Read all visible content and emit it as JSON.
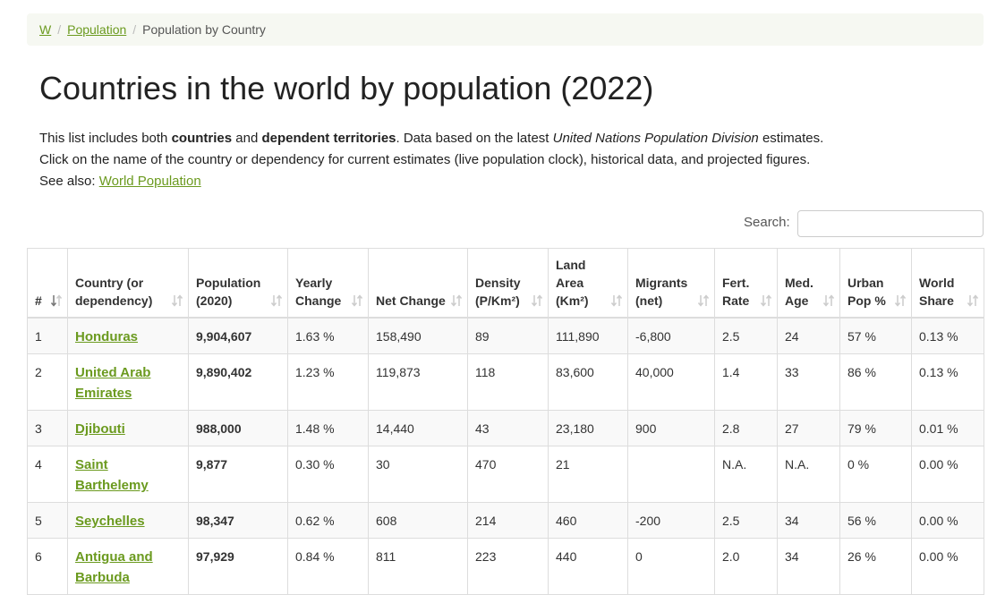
{
  "breadcrumb": [
    "W",
    "Population",
    "Population by Country"
  ],
  "title": "Countries in the world by population (2022)",
  "intro": {
    "line1": [
      "This list includes both",
      "countries",
      "and",
      "dependent territories",
      ". Data based on the latest",
      "United Nations Population Division",
      "estimates."
    ],
    "line2": "Click on the name of the country or dependency for current estimates (live population clock), historical data, and projected figures.",
    "line3": [
      "See also:",
      "World Population"
    ]
  },
  "search_label": "Search:",
  "table": {
    "headers": [
      "#",
      "Country (or dependency)",
      "Population (2020)",
      "Yearly Change",
      "Net Change",
      "Density (P/Km²)",
      "Land Area (Km²)",
      "Migrants (net)",
      "Fert. Rate",
      "Med. Age",
      "Urban Pop %",
      "World Share"
    ],
    "rows": [
      [
        "1",
        "Honduras",
        "9,904,607",
        "1.63 %",
        "158,490",
        "89",
        "111,890",
        "-6,800",
        "2.5",
        "24",
        "57 %",
        "0.13 %"
      ],
      [
        "2",
        "United Arab Emirates",
        "9,890,402",
        "1.23 %",
        "119,873",
        "118",
        "83,600",
        "40,000",
        "1.4",
        "33",
        "86 %",
        "0.13 %"
      ],
      [
        "3",
        "Djibouti",
        "988,000",
        "1.48 %",
        "14,440",
        "43",
        "23,180",
        "900",
        "2.8",
        "27",
        "79 %",
        "0.01 %"
      ],
      [
        "4",
        "Saint Barthelemy",
        "9,877",
        "0.30 %",
        "30",
        "470",
        "21",
        null,
        "N.A.",
        "N.A.",
        "0 %",
        "0.00 %"
      ],
      [
        "5",
        "Seychelles",
        "98,347",
        "0.62 %",
        "608",
        "214",
        "460",
        "-200",
        "2.5",
        "34",
        "56 %",
        "0.00 %"
      ],
      [
        "6",
        "Antigua and Barbuda",
        "97,929",
        "0.84 %",
        "811",
        "223",
        "440",
        "0",
        "2.0",
        "34",
        "26 %",
        "0.00 %"
      ]
    ]
  }
}
